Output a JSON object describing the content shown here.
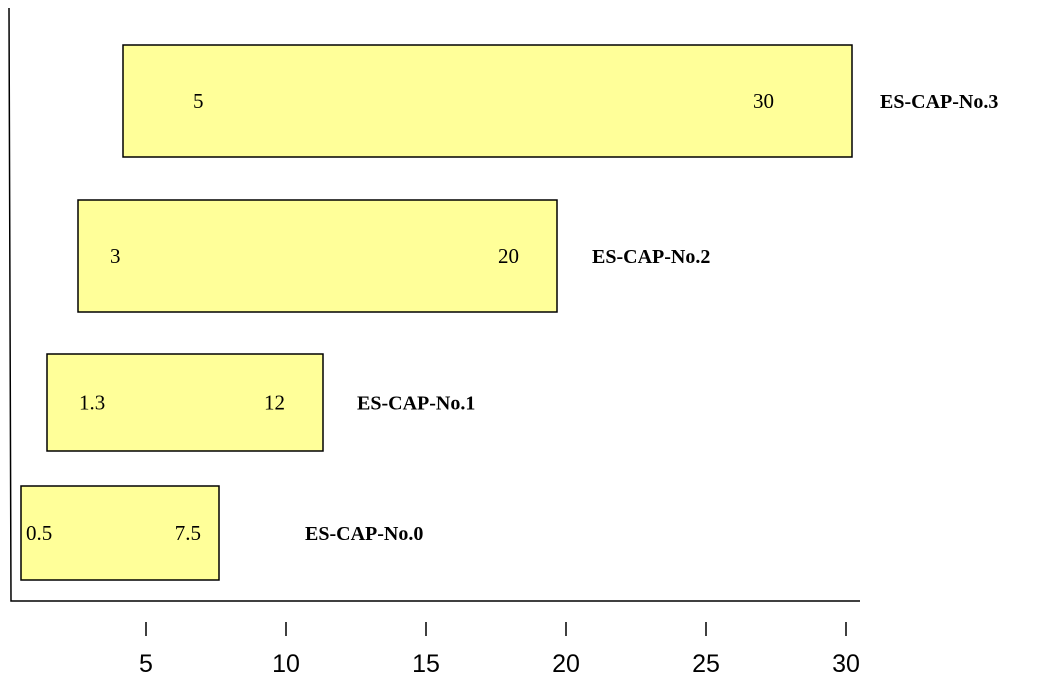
{
  "chart_data": {
    "type": "bar",
    "orientation": "horizontal-range",
    "title": "",
    "xlabel": "",
    "ylabel": "",
    "grid": false,
    "legend": "none",
    "bar_color": "#ffff99",
    "x_ticks": [
      "5",
      "10",
      "15",
      "20",
      "25",
      "30"
    ],
    "tick_values": [
      5,
      10,
      15,
      20,
      25,
      30
    ],
    "categories": [
      "ES-CAP-No.0",
      "ES-CAP-No.1",
      "ES-CAP-No.2",
      "ES-CAP-No.3"
    ],
    "series": [
      {
        "label": "ES-CAP-No.0",
        "low": 0.5,
        "high": 7.5,
        "low_label": "0.5",
        "high_label": "7.5"
      },
      {
        "label": "ES-CAP-No.1",
        "low": 1.3,
        "high": 12,
        "low_label": "1.3",
        "high_label": "12"
      },
      {
        "label": "ES-CAP-No.2",
        "low": 3,
        "high": 20,
        "low_label": "3",
        "high_label": "20"
      },
      {
        "label": "ES-CAP-No.3",
        "low": 5,
        "high": 30,
        "low_label": "5",
        "high_label": "30"
      }
    ]
  }
}
